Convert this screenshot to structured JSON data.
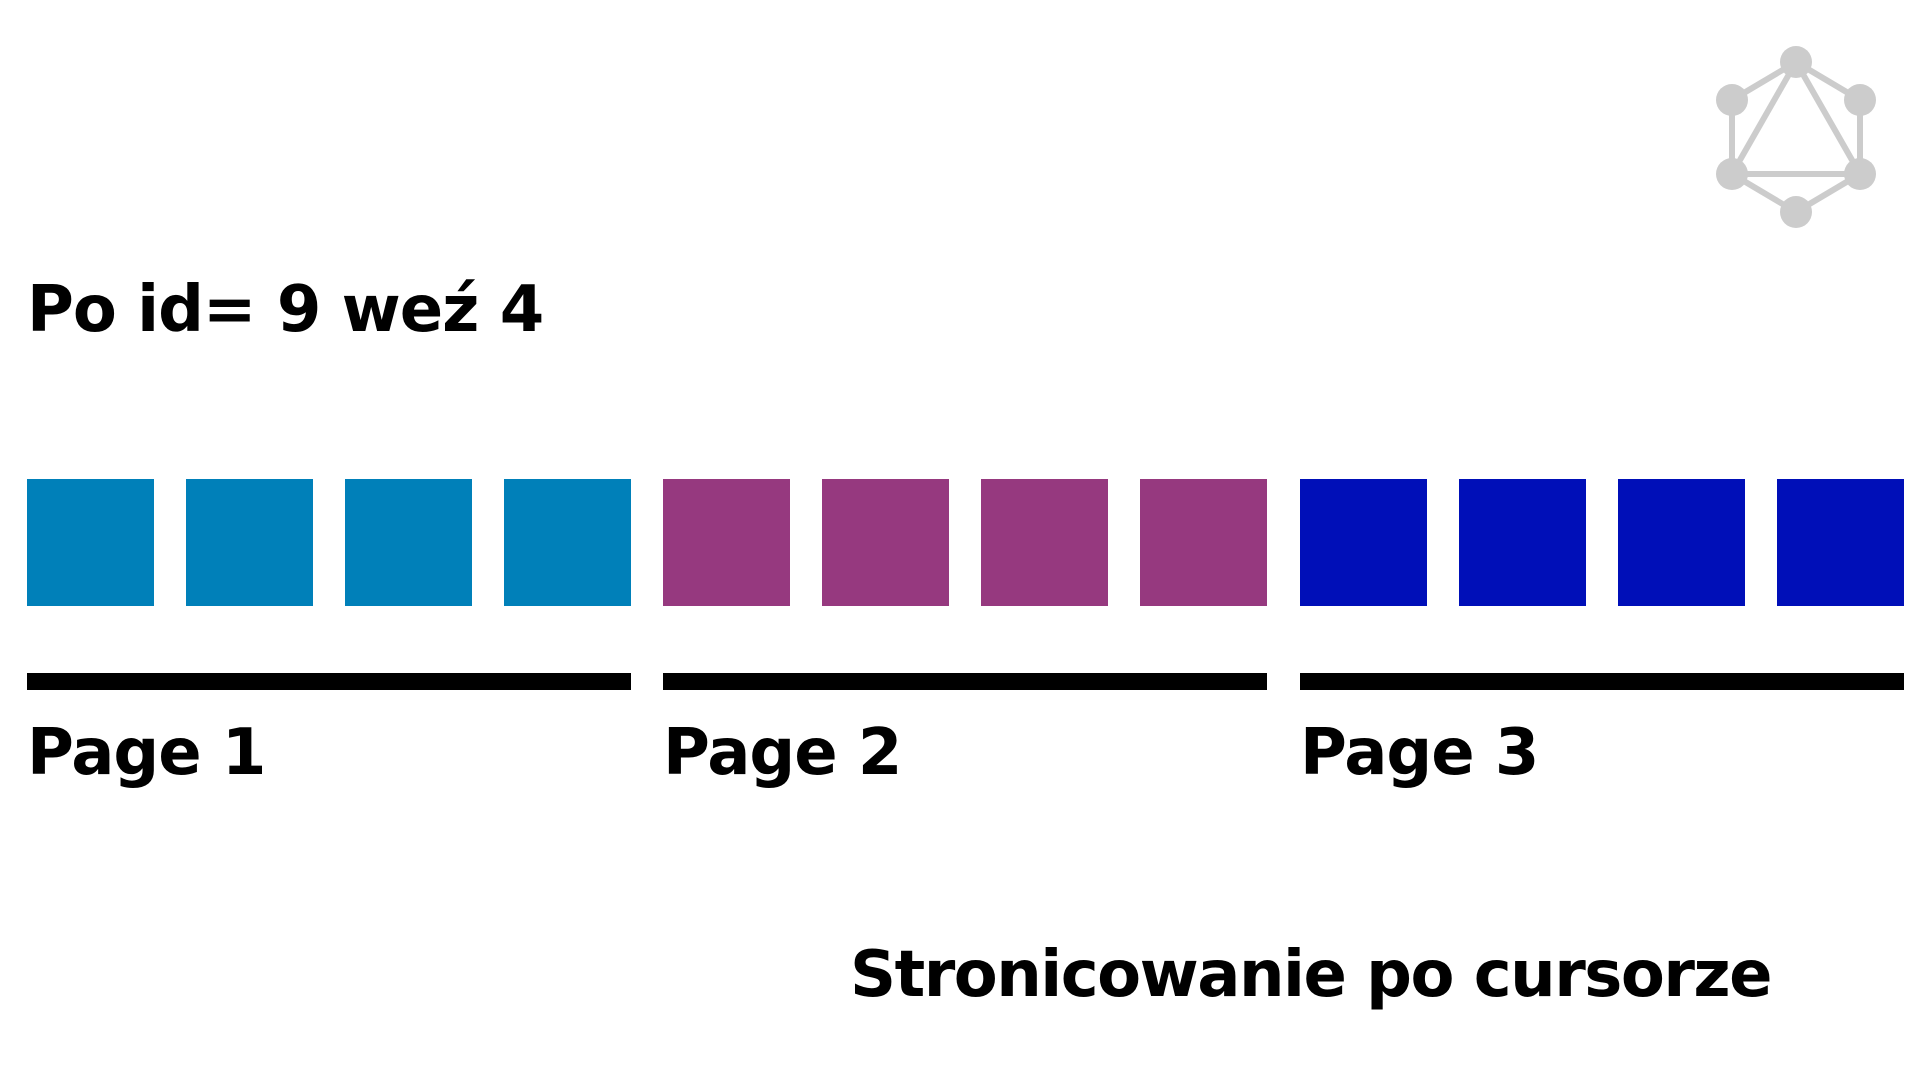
{
  "heading": "Po id= 9 weź 4",
  "pages": [
    {
      "label": "Page 1",
      "color": "#0080b9",
      "items": 4
    },
    {
      "label": "Page 2",
      "color": "#96397f",
      "items": 4
    },
    {
      "label": "Page 3",
      "color": "#000fb8",
      "items": 4
    }
  ],
  "subtitle": "Stronicowanie po cursorze",
  "logo": {
    "icon": "graphql-logo-icon",
    "color": "#cccccc"
  }
}
